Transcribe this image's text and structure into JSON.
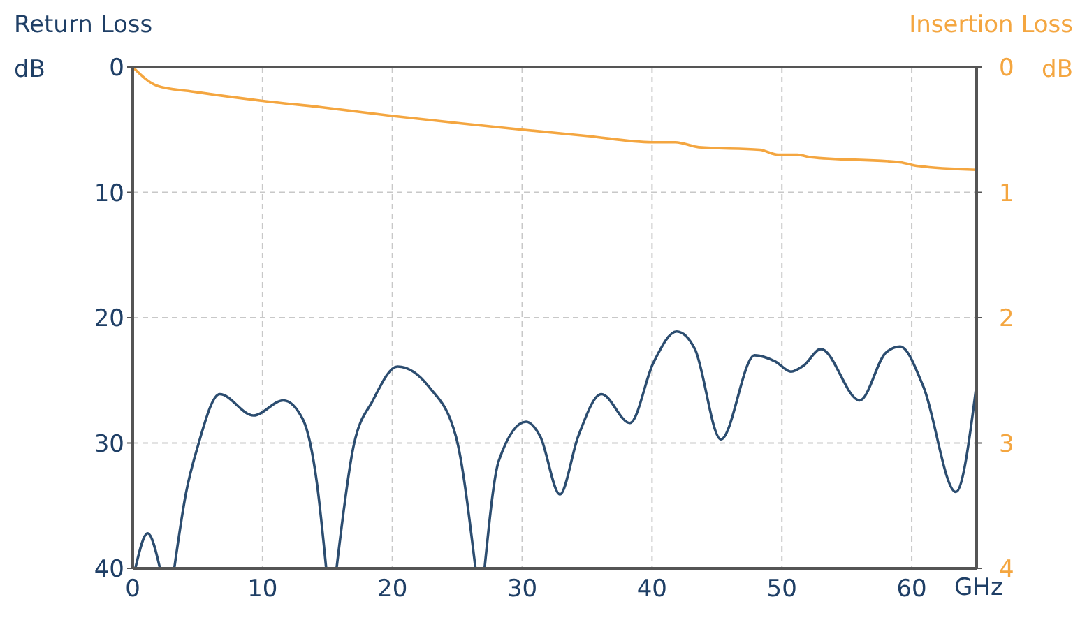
{
  "chart_data": {
    "type": "line",
    "xlabel": "GHz",
    "ylabel": "Return Loss\ndB",
    "y2label": "Insertion Loss\ndB",
    "xlim": [
      0,
      65
    ],
    "xticks": [
      0,
      10,
      20,
      30,
      40,
      50,
      60
    ],
    "ylim": [
      40,
      0
    ],
    "yticks": [
      0,
      10,
      20,
      30,
      40
    ],
    "y2lim": [
      4,
      0
    ],
    "y2ticks": [
      0,
      1,
      2,
      3,
      4
    ],
    "grid": true,
    "marker": "none",
    "line_style": "solid",
    "series": [
      {
        "color": "#f4a640",
        "axis": "y2",
        "x": [
          0,
          1.9,
          4.9,
          10,
          14.5,
          20,
          25.3,
          30,
          35,
          40,
          41.8,
          43.6,
          48.3,
          49.7,
          51.2,
          52.2,
          59.1,
          60.5,
          65
        ],
        "values": [
          0,
          0.15,
          0.2,
          0.27,
          0.32,
          0.39,
          0.45,
          0.5,
          0.55,
          0.6,
          0.6,
          0.64,
          0.66,
          0.7,
          0.7,
          0.72,
          0.76,
          0.79,
          0.82
        ]
      },
      {
        "color": "#2c4d70",
        "x": [
          0.2,
          1.15,
          2.1,
          2.6,
          3.2,
          4.1,
          5.0,
          6.7,
          9.3,
          11.6,
          13.1,
          14.2,
          14.9,
          15.3,
          15.7,
          17.0,
          18.5,
          20.4,
          22.8,
          24.9,
          26.4,
          26.8,
          27.1,
          28.2,
          30.3,
          31.4,
          32.9,
          34.3,
          36.1,
          38.3,
          40.1,
          41.9,
          43.3,
          45.3,
          47.9,
          49.5,
          50.7,
          51.7,
          53.0,
          56.0,
          58.0,
          59.1,
          60.9,
          63.4,
          65
        ],
        "values": [
          40,
          37.2,
          40,
          null,
          40,
          34.0,
          30.3,
          26.1,
          27.8,
          26.6,
          28.1,
          33.3,
          40,
          null,
          40,
          30.3,
          26.6,
          23.9,
          25.5,
          29.5,
          40,
          null,
          40,
          31.4,
          28.3,
          29.5,
          34.1,
          29.5,
          26.1,
          28.4,
          23.6,
          21.1,
          22.5,
          29.7,
          23.0,
          23.5,
          24.3,
          23.8,
          22.5,
          26.6,
          22.8,
          22.3,
          25.5,
          33.9,
          25.3
        ]
      }
    ]
  }
}
